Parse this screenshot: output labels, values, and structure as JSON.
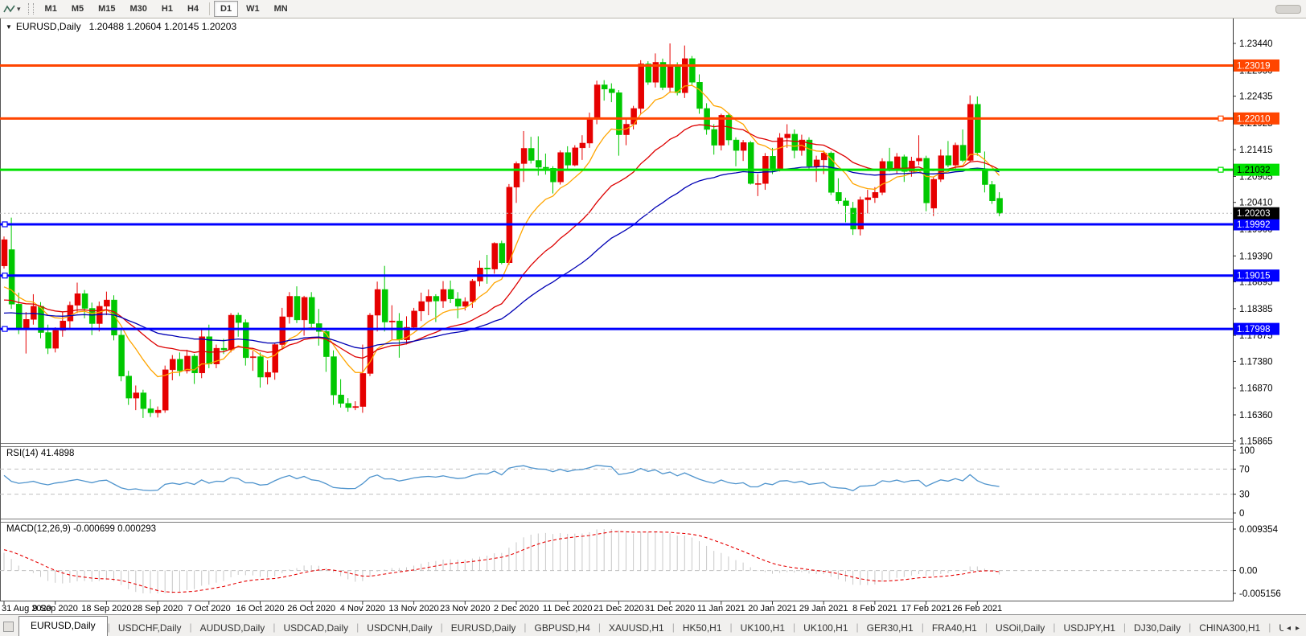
{
  "toolbar": {
    "timeframes": [
      "M1",
      "M5",
      "M15",
      "M30",
      "H1",
      "H4",
      "D1",
      "W1",
      "MN"
    ],
    "active_timeframe": "D1"
  },
  "header": {
    "symbol_label": "EURUSD,Daily",
    "ohlc_text": "1.20488 1.20604 1.20145 1.20203"
  },
  "price_axis": {
    "labels": [
      "1.23440",
      "1.22930",
      "1.22435",
      "1.21925",
      "1.21415",
      "1.20905",
      "1.20410",
      "1.19900",
      "1.19390",
      "1.18895",
      "1.18385",
      "1.17875",
      "1.17380",
      "1.16870",
      "1.16360",
      "1.15865"
    ]
  },
  "lines": [
    {
      "label": "1.23019",
      "value": 1.23019,
      "color": "#FF4500",
      "text_color": "#FFFFFF",
      "handles": []
    },
    {
      "label": "1.22010",
      "value": 1.2201,
      "color": "#FF4500",
      "text_color": "#FFFFFF",
      "handles": [
        "right"
      ]
    },
    {
      "label": "1.21032",
      "value": 1.21032,
      "color": "#00E000",
      "text_color": "#000000",
      "handles": [
        "right"
      ]
    },
    {
      "label": "1.19992",
      "value": 1.19992,
      "color": "#0000FF",
      "text_color": "#FFFFFF",
      "handles": [
        "left"
      ]
    },
    {
      "label": "1.19015",
      "value": 1.19015,
      "color": "#0000FF",
      "text_color": "#FFFFFF",
      "handles": [
        "left"
      ]
    },
    {
      "label": "1.17998",
      "value": 1.17998,
      "color": "#0000FF",
      "text_color": "#FFFFFF",
      "handles": [
        "left"
      ]
    }
  ],
  "current_price": {
    "label": "1.20203",
    "value": 1.20203,
    "badge_color": "#000000",
    "text_color": "#FFFFFF"
  },
  "rsi": {
    "label": "RSI(14) 41.4898",
    "value": "41.4898",
    "axis_labels": [
      "100",
      "70",
      "30",
      "0"
    ],
    "level_lines": [
      70,
      30
    ]
  },
  "macd": {
    "label": "MACD(12,26,9) -0.000699 0.000293",
    "main_value": "-0.000699",
    "signal_value": "0.000293",
    "axis_labels": [
      "0.009354",
      "0.00",
      "-0.005156"
    ],
    "axis_max": 0.009354,
    "axis_min": -0.005156
  },
  "date_axis": {
    "labels": [
      "31 Aug 2020",
      "9 Sep 2020",
      "18 Sep 2020",
      "28 Sep 2020",
      "7 Oct 2020",
      "16 Oct 2020",
      "26 Oct 2020",
      "4 Nov 2020",
      "13 Nov 2020",
      "23 Nov 2020",
      "2 Dec 2020",
      "11 Dec 2020",
      "21 Dec 2020",
      "31 Dec 2020",
      "11 Jan 2021",
      "20 Jan 2021",
      "29 Jan 2021",
      "8 Feb 2021",
      "17 Feb 2021",
      "26 Feb 2021"
    ]
  },
  "tabs": {
    "items": [
      "EURUSD,Daily",
      "USDCHF,Daily",
      "AUDUSD,Daily",
      "USDCAD,Daily",
      "USDCNH,Daily",
      "EURUSD,Daily",
      "GBPUSD,H4",
      "XAUUSD,H1",
      "HK50,H1",
      "UK100,H1",
      "UK100,H1",
      "GER30,H1",
      "FRA40,H1",
      "USOil,Daily",
      "USDJPY,H1",
      "DJ30,Daily",
      "CHINA300,H1",
      "USOil,"
    ],
    "active_index": 0,
    "scroll_left_icon": "◂",
    "scroll_right_icon": "▸"
  },
  "chart_data": {
    "type": "candlestick",
    "symbol": "EURUSD",
    "timeframe": "Daily",
    "current_ohlc": {
      "open": 1.20488,
      "high": 1.20604,
      "low": 1.20145,
      "close": 1.20203
    },
    "ylim": [
      1.15865,
      1.2344
    ],
    "x_label_step": 7,
    "colors": {
      "up_candle": "#E60000",
      "down_candle": "#00C800",
      "ma_fast": "#FFA500",
      "ma_mid": "#DD0000",
      "ma_slow": "#0000B4",
      "rsi_line": "#4F94CD",
      "level_dash": "#C0C0C0",
      "macd_hist": "#C8C8C8",
      "macd_signal": "#E60000"
    },
    "candles": [
      [
        1.192,
        1.1976,
        1.1915,
        1.197
      ],
      [
        1.1951,
        1.2012,
        1.1838,
        1.1847
      ],
      [
        1.1847,
        1.1869,
        1.179,
        1.18
      ],
      [
        1.18,
        1.1832,
        1.1753,
        1.1818
      ],
      [
        1.1818,
        1.1866,
        1.1808,
        1.1843
      ],
      [
        1.1843,
        1.1851,
        1.1782,
        1.1793
      ],
      [
        1.1793,
        1.1808,
        1.1752,
        1.1763
      ],
      [
        1.1763,
        1.1803,
        1.1755,
        1.1797
      ],
      [
        1.1797,
        1.1833,
        1.1785,
        1.1815
      ],
      [
        1.1815,
        1.1852,
        1.18,
        1.1845
      ],
      [
        1.1845,
        1.1888,
        1.183,
        1.1867
      ],
      [
        1.1867,
        1.1874,
        1.182,
        1.1839
      ],
      [
        1.1839,
        1.185,
        1.1788,
        1.181
      ],
      [
        1.181,
        1.1852,
        1.1795,
        1.1843
      ],
      [
        1.1843,
        1.1871,
        1.1826,
        1.1855
      ],
      [
        1.1855,
        1.1864,
        1.1778,
        1.1788
      ],
      [
        1.1788,
        1.18,
        1.17,
        1.171
      ],
      [
        1.171,
        1.172,
        1.1655,
        1.1668
      ],
      [
        1.1668,
        1.1692,
        1.1645,
        1.1678
      ],
      [
        1.1678,
        1.1684,
        1.163,
        1.1648
      ],
      [
        1.1648,
        1.1666,
        1.1632,
        1.164
      ],
      [
        1.164,
        1.1652,
        1.1631,
        1.1645
      ],
      [
        1.1645,
        1.173,
        1.164,
        1.1722
      ],
      [
        1.1722,
        1.175,
        1.1702,
        1.1742
      ],
      [
        1.1742,
        1.1755,
        1.171,
        1.172
      ],
      [
        1.172,
        1.176,
        1.1715,
        1.1748
      ],
      [
        1.1748,
        1.1752,
        1.1695,
        1.1716
      ],
      [
        1.1716,
        1.1798,
        1.1706,
        1.1785
      ],
      [
        1.1785,
        1.1808,
        1.1725,
        1.1733
      ],
      [
        1.1733,
        1.177,
        1.1725,
        1.1763
      ],
      [
        1.1763,
        1.1781,
        1.1752,
        1.176
      ],
      [
        1.176,
        1.183,
        1.1755,
        1.1826
      ],
      [
        1.1826,
        1.1831,
        1.1785,
        1.1812
      ],
      [
        1.1812,
        1.1818,
        1.173,
        1.1745
      ],
      [
        1.1745,
        1.1758,
        1.172,
        1.1747
      ],
      [
        1.1747,
        1.1755,
        1.1688,
        1.1708
      ],
      [
        1.1708,
        1.174,
        1.1694,
        1.1717
      ],
      [
        1.1717,
        1.1772,
        1.1703,
        1.177
      ],
      [
        1.177,
        1.184,
        1.176,
        1.1823
      ],
      [
        1.1823,
        1.187,
        1.181,
        1.1862
      ],
      [
        1.1862,
        1.1881,
        1.1811,
        1.1817
      ],
      [
        1.1817,
        1.1863,
        1.1787,
        1.186
      ],
      [
        1.186,
        1.187,
        1.18,
        1.181
      ],
      [
        1.181,
        1.1838,
        1.1768,
        1.1795
      ],
      [
        1.1795,
        1.18,
        1.1718,
        1.1747
      ],
      [
        1.1747,
        1.1759,
        1.1655,
        1.1674
      ],
      [
        1.1674,
        1.1704,
        1.165,
        1.1658
      ],
      [
        1.1658,
        1.1668,
        1.1642,
        1.165
      ],
      [
        1.165,
        1.1662,
        1.1645,
        1.1652
      ],
      [
        1.1652,
        1.177,
        1.164,
        1.1715
      ],
      [
        1.1715,
        1.183,
        1.171,
        1.1826
      ],
      [
        1.1826,
        1.189,
        1.1795,
        1.1875
      ],
      [
        1.1875,
        1.192,
        1.1795,
        1.1813
      ],
      [
        1.1813,
        1.1845,
        1.178,
        1.1815
      ],
      [
        1.1815,
        1.183,
        1.1745,
        1.1779
      ],
      [
        1.1779,
        1.1824,
        1.177,
        1.1803
      ],
      [
        1.1803,
        1.184,
        1.1798,
        1.1834
      ],
      [
        1.1834,
        1.1869,
        1.1815,
        1.1852
      ],
      [
        1.1852,
        1.1875,
        1.1826,
        1.1862
      ],
      [
        1.1862,
        1.1866,
        1.1813,
        1.1853
      ],
      [
        1.1853,
        1.1891,
        1.184,
        1.1875
      ],
      [
        1.1875,
        1.1892,
        1.1849,
        1.1857
      ],
      [
        1.1857,
        1.187,
        1.182,
        1.1843
      ],
      [
        1.1843,
        1.186,
        1.1835,
        1.1852
      ],
      [
        1.1852,
        1.1895,
        1.184,
        1.1891
      ],
      [
        1.1891,
        1.193,
        1.1881,
        1.1916
      ],
      [
        1.1916,
        1.1941,
        1.1886,
        1.1914
      ],
      [
        1.1914,
        1.1965,
        1.1905,
        1.1963
      ],
      [
        1.1963,
        1.1968,
        1.1923,
        1.1926
      ],
      [
        1.1926,
        1.2076,
        1.1922,
        1.207
      ],
      [
        1.207,
        1.2119,
        1.204,
        1.2115
      ],
      [
        1.2115,
        1.2177,
        1.208,
        1.2144
      ],
      [
        1.2144,
        1.2166,
        1.2115,
        1.2121
      ],
      [
        1.2121,
        1.2167,
        1.2092,
        1.2108
      ],
      [
        1.2108,
        1.2134,
        1.2094,
        1.2106
      ],
      [
        1.2106,
        1.211,
        1.2058,
        1.208
      ],
      [
        1.208,
        1.214,
        1.2075,
        1.2136
      ],
      [
        1.2136,
        1.2148,
        1.2102,
        1.2112
      ],
      [
        1.2112,
        1.215,
        1.211,
        1.2145
      ],
      [
        1.2145,
        1.2169,
        1.2122,
        1.2154
      ],
      [
        1.2154,
        1.2212,
        1.2145,
        1.22
      ],
      [
        1.22,
        1.2273,
        1.219,
        1.2265
      ],
      [
        1.2265,
        1.2274,
        1.2235,
        1.2257
      ],
      [
        1.2257,
        1.2268,
        1.2232,
        1.225
      ],
      [
        1.225,
        1.2255,
        1.213,
        1.217
      ],
      [
        1.217,
        1.2202,
        1.215,
        1.219
      ],
      [
        1.219,
        1.2225,
        1.218,
        1.222
      ],
      [
        1.222,
        1.2312,
        1.221,
        1.2305
      ],
      [
        1.2305,
        1.231,
        1.2265,
        1.227
      ],
      [
        1.227,
        1.2325,
        1.226,
        1.2308
      ],
      [
        1.2308,
        1.2315,
        1.2255,
        1.226
      ],
      [
        1.226,
        1.2344,
        1.225,
        1.23
      ],
      [
        1.23,
        1.2308,
        1.2245,
        1.225
      ],
      [
        1.225,
        1.234,
        1.224,
        1.2315
      ],
      [
        1.2315,
        1.232,
        1.2265,
        1.227
      ],
      [
        1.227,
        1.2285,
        1.221,
        1.222
      ],
      [
        1.222,
        1.223,
        1.217,
        1.218
      ],
      [
        1.218,
        1.219,
        1.2132,
        1.215
      ],
      [
        1.215,
        1.221,
        1.214,
        1.2207
      ],
      [
        1.2207,
        1.221,
        1.215,
        1.216
      ],
      [
        1.216,
        1.2165,
        1.211,
        1.214
      ],
      [
        1.214,
        1.216,
        1.212,
        1.2155
      ],
      [
        1.2155,
        1.2158,
        1.2075,
        1.2077
      ],
      [
        1.2077,
        1.2095,
        1.2053,
        1.2077
      ],
      [
        1.2077,
        1.2135,
        1.2065,
        1.2129
      ],
      [
        1.2129,
        1.2145,
        1.2095,
        1.2105
      ],
      [
        1.2105,
        1.2173,
        1.21,
        1.2164
      ],
      [
        1.2164,
        1.219,
        1.2145,
        1.2171
      ],
      [
        1.2171,
        1.218,
        1.2125,
        1.214
      ],
      [
        1.214,
        1.217,
        1.213,
        1.216
      ],
      [
        1.216,
        1.2165,
        1.2105,
        1.211
      ],
      [
        1.211,
        1.213,
        1.208,
        1.2122
      ],
      [
        1.2122,
        1.214,
        1.2095,
        1.2135
      ],
      [
        1.2135,
        1.2138,
        1.2055,
        1.206
      ],
      [
        1.206,
        1.2087,
        1.2038,
        1.2044
      ],
      [
        1.2044,
        1.205,
        1.2003,
        1.2035
      ],
      [
        1.203,
        1.2042,
        1.1979,
        1.199
      ],
      [
        1.199,
        1.2052,
        1.1978,
        1.2046
      ],
      [
        1.2046,
        1.2065,
        1.202,
        1.205
      ],
      [
        1.205,
        1.207,
        1.204,
        1.206
      ],
      [
        1.206,
        1.2125,
        1.2055,
        1.2119
      ],
      [
        1.2119,
        1.2145,
        1.21,
        1.2105
      ],
      [
        1.2105,
        1.2135,
        1.2095,
        1.2128
      ],
      [
        1.2128,
        1.2132,
        1.208,
        1.21
      ],
      [
        1.21,
        1.2128,
        1.209,
        1.212
      ],
      [
        1.212,
        1.2169,
        1.2112,
        1.2125
      ],
      [
        1.2125,
        1.213,
        1.2024,
        1.204
      ],
      [
        1.203,
        1.209,
        1.2015,
        1.2085
      ],
      [
        1.2085,
        1.2142,
        1.208,
        1.213
      ],
      [
        1.213,
        1.2158,
        1.2108,
        1.2112
      ],
      [
        1.2112,
        1.2155,
        1.2105,
        1.215
      ],
      [
        1.215,
        1.218,
        1.2118,
        1.2121
      ],
      [
        1.2121,
        1.2245,
        1.2117,
        1.2228
      ],
      [
        1.2228,
        1.2243,
        1.213,
        1.2136
      ],
      [
        1.2105,
        1.2138,
        1.206,
        1.2075
      ],
      [
        1.2075,
        1.2082,
        1.2038,
        1.2044
      ],
      [
        1.20488,
        1.20604,
        1.20145,
        1.20203
      ]
    ]
  }
}
